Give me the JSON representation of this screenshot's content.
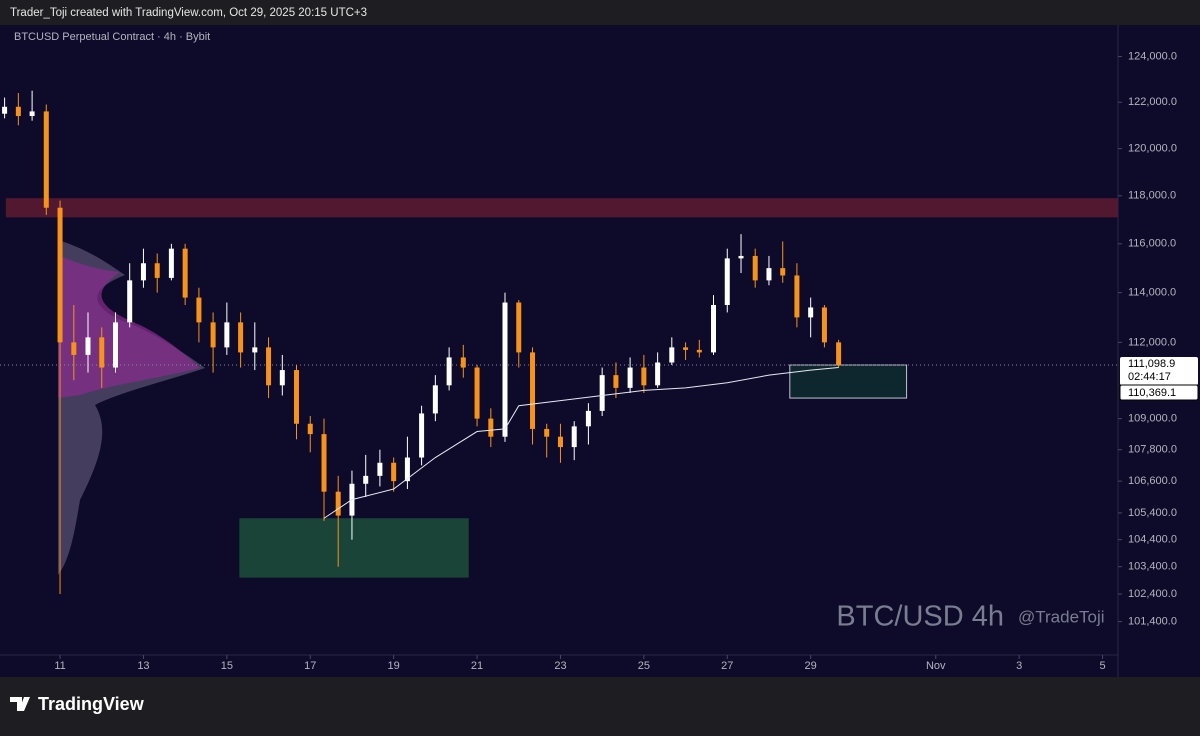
{
  "header": {
    "text": "Trader_Toji created with TradingView.com, Oct 29, 2025 20:15 UTC+3"
  },
  "footer": {
    "brand": "TradingView"
  },
  "chart_data": {
    "type": "candlestick",
    "title": "BTCUSD Perpetual Contract · 4h · Bybit",
    "watermark": "BTC/USD 4h",
    "author": "@TradeToji",
    "log_scale": true,
    "up_color": "#ffffff",
    "down_color": "#f7931a",
    "x": [
      9.67,
      10,
      10.33,
      10.67,
      11,
      11.33,
      11.67,
      12,
      12.33,
      12.67,
      13,
      13.33,
      13.67,
      14,
      14.33,
      14.67,
      15,
      15.33,
      15.67,
      16,
      16.33,
      16.67,
      17,
      17.33,
      17.67,
      18,
      18.33,
      18.67,
      19,
      19.33,
      19.67,
      20,
      20.33,
      20.67,
      21,
      21.33,
      21.67,
      22,
      22.33,
      22.67,
      23,
      23.33,
      23.67,
      24,
      24.33,
      24.67,
      25,
      25.33,
      25.67,
      26,
      26.33,
      26.67,
      27,
      27.33,
      27.67,
      28,
      28.33,
      28.67,
      29,
      29.33,
      29.67
    ],
    "open": [
      121500,
      121800,
      121400,
      121600,
      117500,
      112000,
      111500,
      112200,
      111000,
      112800,
      114500,
      115200,
      114600,
      115800,
      113800,
      112800,
      111800,
      112800,
      111600,
      111800,
      110300,
      110900,
      108800,
      108400,
      106200,
      105300,
      106500,
      106800,
      107300,
      106600,
      107500,
      109200,
      110300,
      111400,
      111000,
      109000,
      108300,
      113600,
      111600,
      108600,
      108300,
      107900,
      108700,
      109300,
      110700,
      110200,
      111000,
      110300,
      111200,
      111800,
      111700,
      111600,
      113500,
      115400,
      115500,
      114500,
      115000,
      114700,
      113000,
      113400,
      112000
    ],
    "high": [
      122200,
      122400,
      122500,
      121900,
      117800,
      113500,
      113200,
      112600,
      113200,
      115200,
      115800,
      115600,
      116000,
      116000,
      114200,
      113200,
      113600,
      113200,
      112800,
      112200,
      111500,
      111100,
      109100,
      109000,
      106800,
      107000,
      107600,
      107800,
      107500,
      108300,
      109500,
      110700,
      111800,
      111900,
      111100,
      109400,
      114000,
      113700,
      111800,
      108800,
      108800,
      108900,
      109600,
      111000,
      111200,
      111400,
      111500,
      111600,
      112200,
      112000,
      112100,
      113900,
      115800,
      116400,
      115800,
      115500,
      116100,
      115200,
      113800,
      113500,
      112100
    ],
    "low": [
      121300,
      121000,
      121200,
      117200,
      102400,
      110500,
      110800,
      110200,
      110800,
      112600,
      114200,
      114000,
      114500,
      113500,
      112000,
      110800,
      111500,
      111000,
      110900,
      109800,
      109900,
      108200,
      107700,
      105100,
      103400,
      104400,
      106000,
      106400,
      106200,
      106300,
      107200,
      108900,
      110100,
      110600,
      108700,
      107900,
      108100,
      111000,
      108000,
      107500,
      107300,
      107400,
      108000,
      109100,
      109800,
      110000,
      110000,
      110200,
      111100,
      111300,
      111400,
      111500,
      113200,
      114800,
      114200,
      114300,
      114400,
      112600,
      112200,
      111800,
      111000
    ],
    "close": [
      121800,
      121400,
      121600,
      117500,
      112000,
      111500,
      112200,
      111000,
      112800,
      114500,
      115200,
      114600,
      115800,
      113800,
      112800,
      111800,
      112800,
      111600,
      111800,
      110300,
      110900,
      108800,
      108400,
      106200,
      105300,
      106500,
      106800,
      107300,
      106600,
      107500,
      109200,
      110300,
      111400,
      111000,
      109000,
      108300,
      113600,
      111600,
      108600,
      108300,
      107900,
      108700,
      109300,
      110700,
      110200,
      111000,
      110300,
      111200,
      111800,
      111700,
      111600,
      113500,
      115400,
      115500,
      114500,
      115000,
      114700,
      113000,
      113400,
      112000,
      111100
    ],
    "vwap": {
      "x": [
        17.33,
        18,
        19,
        20,
        21,
        21.67,
        22,
        23,
        24,
        25,
        26,
        27,
        28,
        29,
        29.67
      ],
      "values": [
        105200,
        105900,
        106300,
        107500,
        108500,
        108600,
        109500,
        109700,
        109900,
        110100,
        110200,
        110400,
        110700,
        110900,
        111000
      ],
      "color": "#e8e8f0"
    },
    "zones": [
      {
        "x": [
          9.7,
          36.37
        ],
        "y": [
          117100,
          117900
        ],
        "color": "#5a1a30"
      },
      {
        "x": [
          15.3,
          20.8
        ],
        "y": [
          103000,
          105200
        ],
        "color": "#1d4a3a"
      },
      {
        "x": [
          28.5,
          31.3
        ],
        "y": [
          109800,
          111100
        ],
        "color": "#0f2a2e"
      }
    ],
    "current_price": {
      "value": 111098.9,
      "label": "111,098.9"
    },
    "countdown": "02:44:17",
    "line_price": {
      "value": 110369.1,
      "label": "110,369.1"
    },
    "xlim": [
      9.56,
      36.37
    ],
    "xticks": [
      11,
      13,
      15,
      17,
      19,
      21,
      23,
      25,
      27,
      29,
      {
        "value": 32,
        "label": "Nov"
      },
      {
        "value": 34,
        "label": "3"
      },
      {
        "value": 36,
        "label": "5"
      }
    ],
    "ylim": [
      100200,
      125400
    ],
    "yticks": [
      {
        "value": 124000,
        "label": "124,000.0"
      },
      {
        "value": 122000,
        "label": "122,000.0"
      },
      {
        "value": 120000,
        "label": "120,000.0"
      },
      {
        "value": 118000,
        "label": "118,000.0"
      },
      {
        "value": 116000,
        "label": "116,000.0"
      },
      {
        "value": 114000,
        "label": "114,000.0"
      },
      {
        "value": 112000,
        "label": "112,000.0"
      },
      {
        "value": 109000,
        "label": "109,000.0"
      },
      {
        "value": 107800,
        "label": "107,800.0"
      },
      {
        "value": 106600,
        "label": "106,600.0"
      },
      {
        "value": 105400,
        "label": "105,400.0"
      },
      {
        "value": 104400,
        "label": "104,400.0"
      },
      {
        "value": 103400,
        "label": "103,400.0"
      },
      {
        "value": 102400,
        "label": "102,400.0"
      },
      {
        "value": 101400,
        "label": "101,400.0"
      }
    ]
  }
}
